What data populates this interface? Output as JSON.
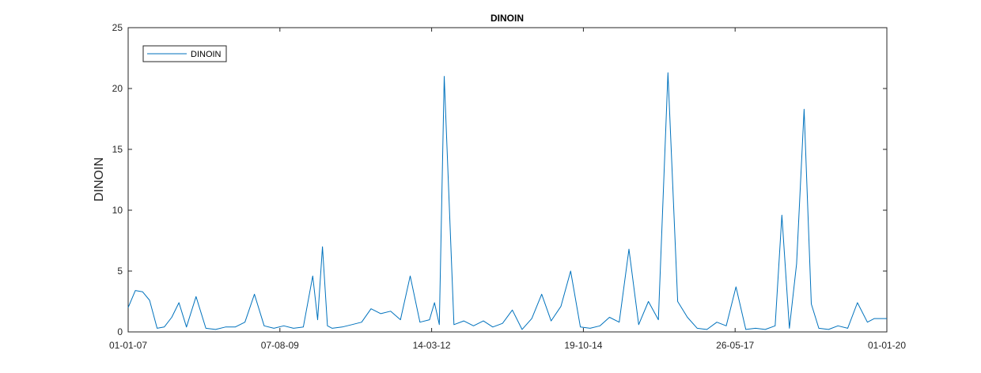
{
  "chart_data": {
    "type": "line",
    "title": "DINOIN",
    "xlabel": "",
    "ylabel": "DINOIN",
    "x_tick_labels": [
      "01-01-07",
      "07-08-09",
      "14-03-12",
      "19-10-14",
      "26-05-17",
      "01-01-20"
    ],
    "y_tick_labels": [
      "0",
      "5",
      "10",
      "15",
      "20",
      "25"
    ],
    "y_ticks": [
      0,
      5,
      10,
      15,
      20,
      25
    ],
    "xlim": [
      "2007-01-01",
      "2020-01-01"
    ],
    "ylim": [
      0,
      25
    ],
    "grid": false,
    "legend_position": "top-left",
    "series": [
      {
        "name": "DINOIN",
        "color": "#0072BD",
        "x": [
          "2007-01-01",
          "2007-02-15",
          "2007-04-01",
          "2007-05-15",
          "2007-07-01",
          "2007-08-15",
          "2007-10-01",
          "2007-11-15",
          "2008-01-01",
          "2008-03-01",
          "2008-05-01",
          "2008-07-01",
          "2008-09-01",
          "2008-11-01",
          "2009-01-01",
          "2009-03-01",
          "2009-05-01",
          "2009-07-01",
          "2009-09-01",
          "2009-11-01",
          "2010-01-01",
          "2010-03-01",
          "2010-04-01",
          "2010-05-01",
          "2010-06-01",
          "2010-07-01",
          "2010-09-01",
          "2010-11-01",
          "2011-01-01",
          "2011-03-01",
          "2011-05-01",
          "2011-07-01",
          "2011-09-01",
          "2011-11-01",
          "2012-01-01",
          "2012-03-01",
          "2012-04-01",
          "2012-05-01",
          "2012-06-01",
          "2012-08-01",
          "2012-10-01",
          "2012-12-01",
          "2013-02-01",
          "2013-04-01",
          "2013-06-01",
          "2013-08-01",
          "2013-10-01",
          "2013-12-01",
          "2014-02-01",
          "2014-04-01",
          "2014-06-01",
          "2014-08-01",
          "2014-10-01",
          "2014-12-01",
          "2015-02-01",
          "2015-04-01",
          "2015-06-01",
          "2015-08-01",
          "2015-10-01",
          "2015-12-01",
          "2016-02-01",
          "2016-04-01",
          "2016-06-01",
          "2016-08-01",
          "2016-10-01",
          "2016-12-01",
          "2017-02-01",
          "2017-04-01",
          "2017-06-01",
          "2017-08-01",
          "2017-10-01",
          "2017-12-01",
          "2018-02-01",
          "2018-03-15",
          "2018-05-01",
          "2018-06-15",
          "2018-08-01",
          "2018-09-15",
          "2018-11-01",
          "2019-01-01",
          "2019-03-01",
          "2019-05-01",
          "2019-07-01",
          "2019-09-01",
          "2019-10-15",
          "2020-01-01"
        ],
        "values": [
          2.0,
          3.4,
          3.3,
          2.6,
          0.3,
          0.4,
          1.2,
          2.4,
          0.4,
          2.9,
          0.3,
          0.2,
          0.4,
          0.4,
          0.8,
          3.1,
          0.5,
          0.3,
          0.5,
          0.3,
          0.4,
          4.6,
          1.0,
          7.0,
          0.5,
          0.3,
          0.4,
          0.6,
          0.8,
          1.9,
          1.5,
          1.7,
          1.0,
          4.6,
          0.8,
          1.0,
          2.4,
          0.6,
          21.0,
          0.6,
          0.9,
          0.5,
          0.9,
          0.4,
          0.7,
          1.8,
          0.2,
          1.1,
          3.1,
          0.9,
          2.1,
          5.0,
          0.4,
          0.3,
          0.5,
          1.2,
          0.8,
          6.8,
          0.6,
          2.5,
          1.0,
          21.3,
          2.5,
          1.2,
          0.3,
          0.2,
          0.8,
          0.5,
          3.7,
          0.2,
          0.3,
          0.2,
          0.5,
          9.6,
          0.3,
          5.6,
          18.3,
          2.3,
          0.3,
          0.2,
          0.5,
          0.3,
          2.4,
          0.8,
          1.1,
          1.1
        ]
      }
    ]
  }
}
